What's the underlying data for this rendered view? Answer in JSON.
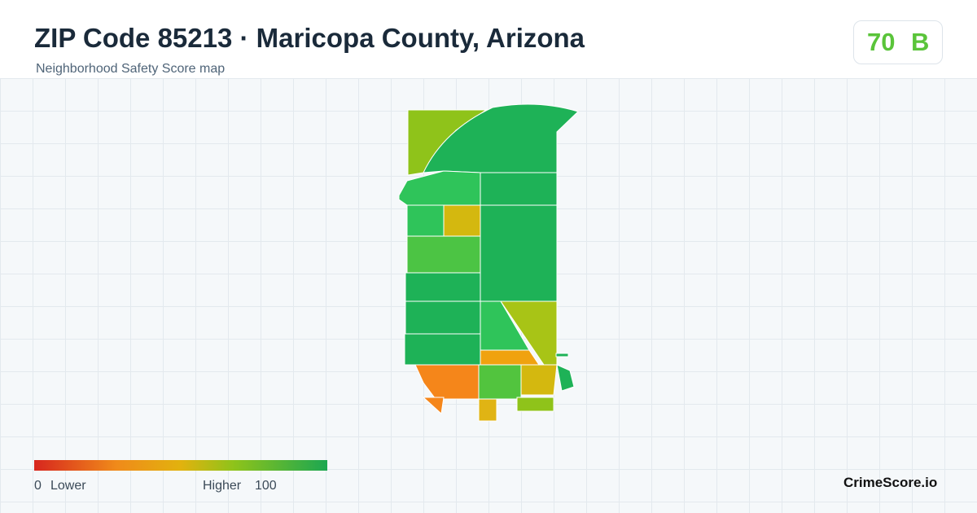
{
  "header": {
    "title": "ZIP Code 85213 · Maricopa County, Arizona",
    "subtitle": "Neighborhood Safety Score map"
  },
  "score": {
    "value": 70,
    "grade": "B"
  },
  "legend": {
    "min": 0,
    "min_label": "Lower",
    "max_label": "Higher",
    "max": 100
  },
  "brand": "CrimeScore.io"
}
